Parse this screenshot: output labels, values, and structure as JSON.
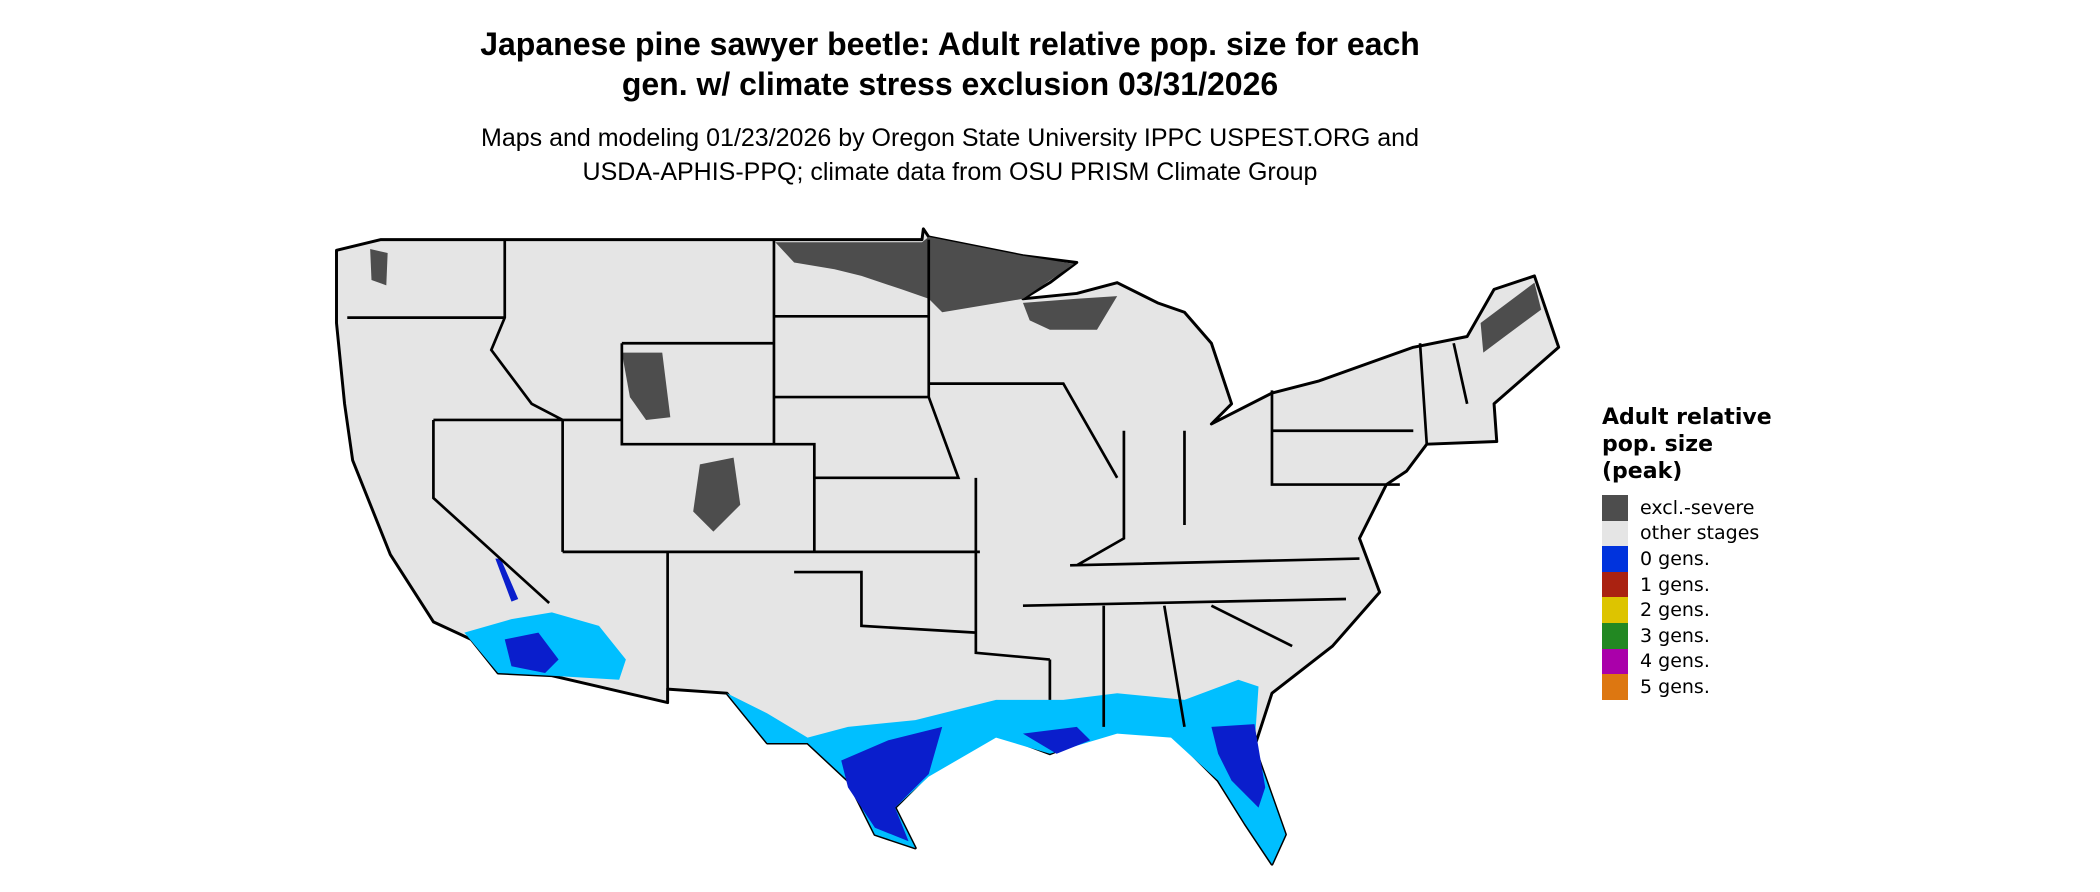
{
  "title_line1": "Japanese pine sawyer beetle: Adult relative pop. size for each",
  "title_line2": "gen. w/ climate stress exclusion 03/31/2026",
  "subtitle_line1": "Maps and modeling 01/23/2026 by Oregon State University IPPC USPEST.ORG and",
  "subtitle_line2": "USDA-APHIS-PPQ; climate data from OSU PRISM Climate Group",
  "legend": {
    "title_line1": "Adult relative",
    "title_line2": "pop. size",
    "title_line3": "(peak)",
    "items": [
      {
        "label": "excl.-severe",
        "color": "#4d4d4d"
      },
      {
        "label": "other stages",
        "color": "#e5e5e5"
      },
      {
        "label": "0 gens.",
        "color": "#0033dd"
      },
      {
        "label": "1 gens.",
        "color": "#aa2211"
      },
      {
        "label": "2 gens.",
        "color": "#ddc400"
      },
      {
        "label": "3 gens.",
        "color": "#228822"
      },
      {
        "label": "4 gens.",
        "color": "#aa00aa"
      },
      {
        "label": "5 gens.",
        "color": "#dd7711"
      }
    ]
  },
  "map_colors": {
    "coast_light_blue": "#00bfff",
    "deep_blue": "#0a1ecc",
    "dark_navy": "#0a0a8c"
  }
}
